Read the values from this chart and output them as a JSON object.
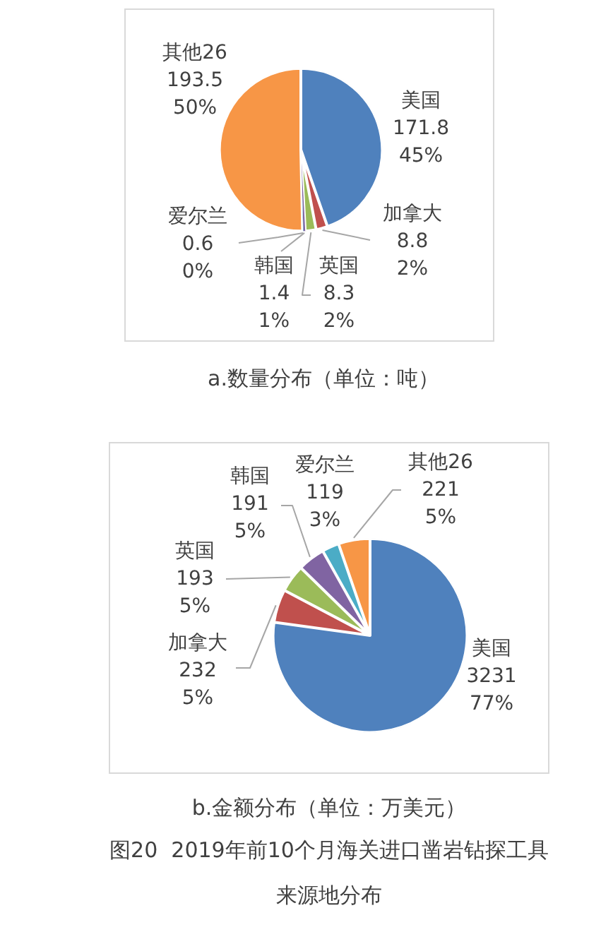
{
  "chart_data": [
    {
      "type": "pie",
      "title": "a.数量分布（单位：吨）",
      "categories": [
        "美国",
        "加拿大",
        "英国",
        "韩国",
        "爱尔兰",
        "其他26"
      ],
      "values": [
        171.8,
        8.8,
        8.3,
        1.4,
        0.6,
        193.5
      ],
      "colors": [
        "#4f81bd",
        "#c0504d",
        "#9bbb59",
        "#8064a2",
        "#4bacc6",
        "#f79646"
      ],
      "value_labels": [
        "171.8\n45%",
        "8.8\n2%",
        "8.3\n2%",
        "1.4\n1%",
        "0.6\n0%",
        "193.5\n50%"
      ]
    },
    {
      "type": "pie",
      "title": "b.金额分布（单位：万美元）",
      "categories": [
        "美国",
        "加拿大",
        "英国",
        "韩国",
        "爱尔兰",
        "其他26"
      ],
      "values": [
        3231,
        232,
        193,
        191,
        119,
        221
      ],
      "colors": [
        "#4f81bd",
        "#c0504d",
        "#9bbb59",
        "#8064a2",
        "#4bacc6",
        "#f79646"
      ],
      "value_labels": [
        "3231\n77%",
        "232\n5%",
        "193\n5%",
        "191\n5%",
        "119\n3%",
        "221\n5%"
      ],
      "annotations": [
        "图20  2019年前10个月海关进口凿岩钻探工具来源地分布"
      ]
    }
  ]
}
